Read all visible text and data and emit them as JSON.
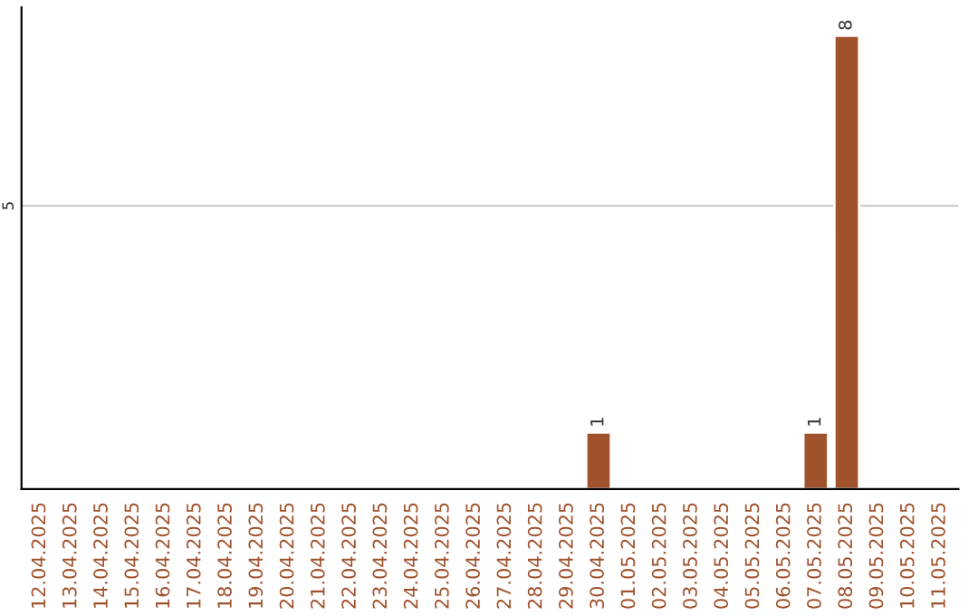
{
  "chart_data": {
    "type": "bar",
    "categories": [
      "12.04.2025",
      "13.04.2025",
      "14.04.2025",
      "15.04.2025",
      "16.04.2025",
      "17.04.2025",
      "18.04.2025",
      "19.04.2025",
      "20.04.2025",
      "21.04.2025",
      "22.04.2025",
      "23.04.2025",
      "24.04.2025",
      "25.04.2025",
      "26.04.2025",
      "27.04.2025",
      "28.04.2025",
      "29.04.2025",
      "30.04.2025",
      "01.05.2025",
      "02.05.2025",
      "03.05.2025",
      "04.05.2025",
      "05.05.2025",
      "06.05.2025",
      "07.05.2025",
      "08.05.2025",
      "09.05.2025",
      "10.05.2025",
      "11.05.2025"
    ],
    "values": [
      null,
      null,
      null,
      null,
      null,
      null,
      null,
      null,
      null,
      null,
      null,
      null,
      null,
      null,
      null,
      null,
      null,
      null,
      1,
      null,
      null,
      null,
      null,
      null,
      null,
      1,
      8,
      null,
      null,
      null
    ],
    "color": "#a0522d",
    "ylim": [
      0,
      8.5
    ],
    "yticks": [
      5
    ],
    "grid": "y",
    "data_labels": true
  }
}
